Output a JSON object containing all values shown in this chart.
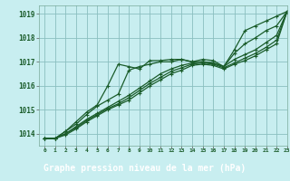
{
  "title": "Graphe pression niveau de la mer (hPa)",
  "background_color": "#c8eef0",
  "plot_bg_color": "#c8eef0",
  "label_bg_color": "#2d6b3c",
  "label_text_color": "#ffffff",
  "grid_color": "#8abfbf",
  "line_color": "#1a5c2a",
  "xlim": [
    -0.5,
    23
  ],
  "ylim": [
    1013.5,
    1019.35
  ],
  "yticks": [
    1014,
    1015,
    1016,
    1017,
    1018,
    1019
  ],
  "xticks": [
    0,
    1,
    2,
    3,
    4,
    5,
    6,
    7,
    8,
    9,
    10,
    11,
    12,
    13,
    14,
    15,
    16,
    17,
    18,
    19,
    20,
    21,
    22,
    23
  ],
  "series": [
    [
      1013.8,
      1013.8,
      1014.1,
      1014.5,
      1014.9,
      1015.2,
      1016.0,
      1016.9,
      1016.8,
      1016.7,
      1017.05,
      1017.05,
      1017.1,
      1017.1,
      1017.0,
      1017.1,
      1017.05,
      1016.8,
      1017.5,
      1018.3,
      1018.5,
      1018.7,
      1018.9,
      1019.1
    ],
    [
      1013.8,
      1013.8,
      1014.1,
      1014.4,
      1014.8,
      1015.15,
      1015.4,
      1015.65,
      1016.65,
      1016.8,
      1016.9,
      1017.0,
      1017.0,
      1017.1,
      1017.0,
      1017.0,
      1016.95,
      1016.8,
      1017.35,
      1017.75,
      1018.0,
      1018.3,
      1018.5,
      1019.1
    ],
    [
      1013.8,
      1013.8,
      1014.0,
      1014.3,
      1014.6,
      1014.85,
      1015.1,
      1015.35,
      1015.6,
      1015.9,
      1016.2,
      1016.5,
      1016.7,
      1016.85,
      1016.95,
      1017.0,
      1016.95,
      1016.8,
      1017.1,
      1017.3,
      1017.5,
      1017.8,
      1018.1,
      1019.1
    ],
    [
      1013.8,
      1013.8,
      1014.0,
      1014.25,
      1014.55,
      1014.8,
      1015.05,
      1015.25,
      1015.5,
      1015.8,
      1016.1,
      1016.35,
      1016.6,
      1016.75,
      1016.9,
      1016.95,
      1016.9,
      1016.75,
      1016.95,
      1017.15,
      1017.35,
      1017.6,
      1017.9,
      1019.1
    ],
    [
      1013.8,
      1013.8,
      1013.95,
      1014.2,
      1014.5,
      1014.75,
      1015.0,
      1015.2,
      1015.4,
      1015.7,
      1016.0,
      1016.25,
      1016.5,
      1016.65,
      1016.85,
      1016.9,
      1016.85,
      1016.7,
      1016.9,
      1017.05,
      1017.25,
      1017.5,
      1017.75,
      1019.1
    ]
  ]
}
